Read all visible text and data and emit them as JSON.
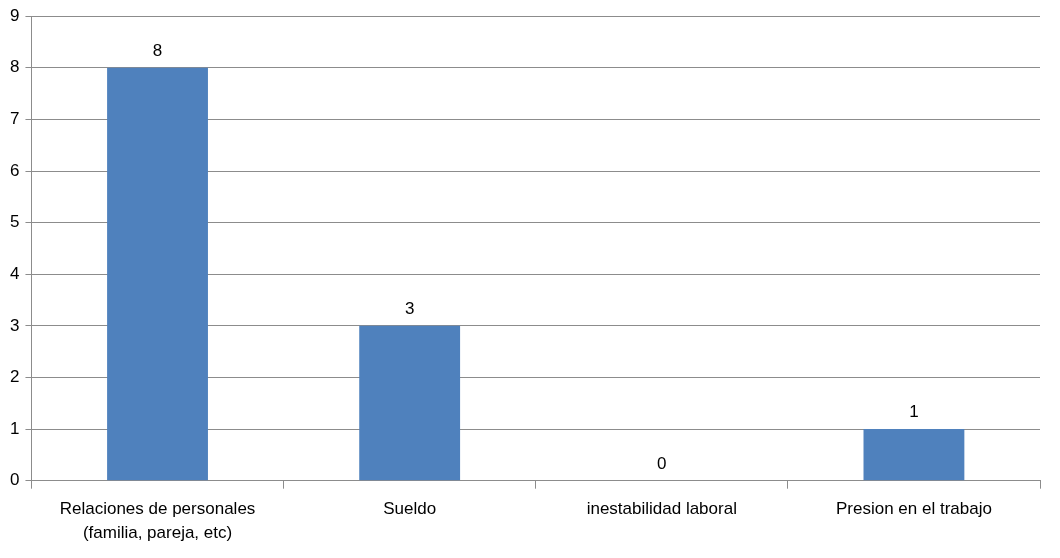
{
  "chart_data": {
    "type": "bar",
    "categories": [
      "Relaciones de personales (familia, pareja, etc)",
      "Sueldo",
      "inestabilidad laboral",
      "Presion en el trabajo"
    ],
    "values": [
      8,
      3,
      0,
      1
    ],
    "color": "#4f81bd",
    "ylim": [
      0,
      9
    ],
    "yticks": [
      0,
      1,
      2,
      3,
      4,
      5,
      6,
      7,
      8,
      9
    ],
    "grid": "y",
    "data_labels": true,
    "legend": false
  }
}
